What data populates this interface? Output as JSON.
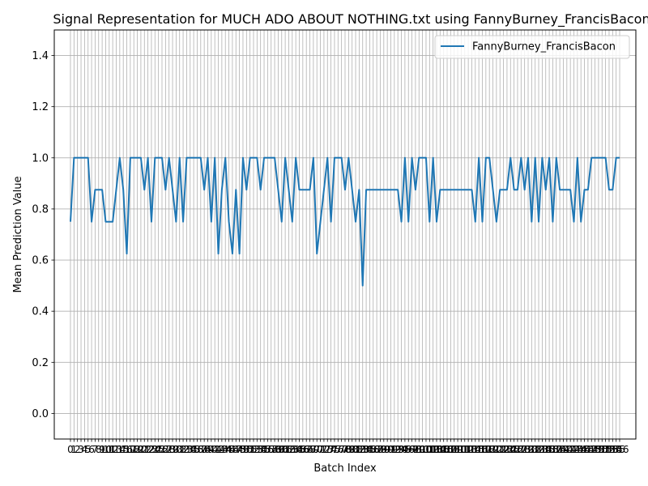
{
  "chart_data": {
    "type": "line",
    "title": "Signal Representation for MUCH ADO ABOUT NOTHING.txt using FannyBurney_FrancisBacon",
    "xlabel": "Batch Index",
    "ylabel": "Mean Prediction Value",
    "ylim": [
      -0.1,
      1.5
    ],
    "yticks": [
      0.0,
      0.2,
      0.4,
      0.6,
      0.8,
      1.0,
      1.2,
      1.4
    ],
    "xlim": [
      -4.6,
      160.6
    ],
    "grid": true,
    "legend_position": "top-right",
    "x_tick_labels_overlapping": "0 1 2 3 4 5 6 7 8 9 10 ... 153",
    "series": [
      {
        "name": "FannyBurney_FrancisBacon",
        "color": "#1f77b4",
        "x_start": 0,
        "values": [
          0.75,
          1,
          1,
          1,
          1,
          1,
          0.75,
          0.875,
          0.875,
          0.875,
          0.75,
          0.75,
          0.75,
          0.875,
          1,
          0.875,
          0.625,
          1,
          1,
          1,
          1,
          0.875,
          1,
          0.75,
          1,
          1,
          1,
          0.875,
          1,
          0.875,
          0.75,
          1,
          0.75,
          1,
          1,
          1,
          1,
          1,
          0.875,
          1,
          0.75,
          1,
          0.625,
          0.875,
          1,
          0.75,
          0.625,
          0.875,
          0.625,
          1,
          0.875,
          1,
          1,
          1,
          0.875,
          1,
          1,
          1,
          1,
          0.875,
          0.75,
          1,
          0.875,
          0.75,
          1,
          0.875,
          0.875,
          0.875,
          0.875,
          1,
          0.625,
          0.75,
          0.875,
          1,
          0.75,
          1,
          1,
          1,
          0.875,
          1,
          0.875,
          0.75,
          0.875,
          0.5,
          0.875,
          0.875,
          0.875,
          0.875,
          0.875,
          0.875,
          0.875,
          0.875,
          0.875,
          0.875,
          0.75,
          1,
          0.75,
          1,
          0.875,
          1,
          1,
          1,
          0.75,
          1,
          0.75,
          0.875,
          0.875,
          0.875,
          0.875,
          0.875,
          0.875,
          0.875,
          0.875,
          0.875,
          0.875,
          0.75,
          1,
          0.75,
          1,
          1,
          0.875,
          0.75,
          0.875,
          0.875,
          0.875,
          1,
          0.875,
          0.875,
          1,
          0.875,
          1,
          0.75,
          1,
          0.75,
          1,
          0.875,
          1,
          0.75,
          1,
          0.875,
          0.875,
          0.875,
          0.875,
          0.75,
          1,
          0.75,
          0.875,
          0.875,
          1,
          1,
          1,
          1,
          1,
          0.875,
          0.875,
          1,
          1
        ]
      }
    ]
  }
}
